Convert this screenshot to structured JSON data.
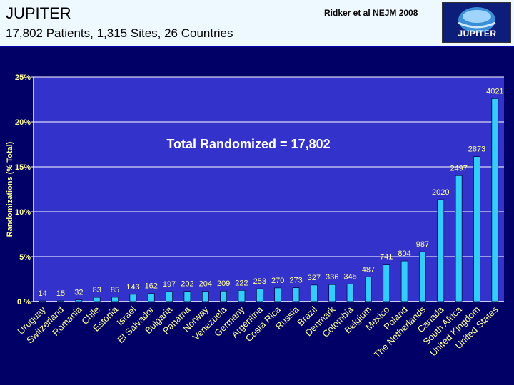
{
  "header": {
    "title": "JUPITER",
    "subtitle": "17,802 Patients, 1,315 Sites, 26 Countries",
    "citation": "Ridker et al NEJM 2008",
    "logo_text": "JUPITER"
  },
  "colors": {
    "page_bg": "#000066",
    "plot_bg": "#3333cc",
    "bar_fill": "#33ccff",
    "text_yellow": "#ffff99",
    "header_bg": "#eef8ff"
  },
  "chart_data": {
    "type": "bar",
    "annotation": "Total Randomized = 17,802",
    "ylabel": "Randomizations (% Total)",
    "xlabel": "",
    "ylim": [
      0,
      25
    ],
    "yticks": [
      0,
      5,
      10,
      15,
      20,
      25
    ],
    "ytick_labels": [
      "0 %",
      "5%",
      "10%",
      "15%",
      "20%",
      "25%"
    ],
    "total": 17802,
    "grid": true,
    "categories": [
      "Uruguay",
      "Switzerland",
      "Romania",
      "Chile",
      "Estonia",
      "Israel",
      "El Salvador",
      "Bulgaria",
      "Panama",
      "Norway",
      "Venezuela",
      "Germany",
      "Argentina",
      "Costa Rica",
      "Russia",
      "Brazil",
      "Denmark",
      "Colombia",
      "Belgium",
      "Mexico",
      "Poland",
      "The Netherlands",
      "Canada",
      "South Africa",
      "United Kingdom",
      "United States"
    ],
    "values": [
      14,
      15,
      32,
      83,
      85,
      143,
      162,
      197,
      202,
      204,
      209,
      222,
      253,
      270,
      273,
      327,
      336,
      345,
      487,
      741,
      804,
      987,
      2020,
      2497,
      2873,
      4021
    ]
  }
}
